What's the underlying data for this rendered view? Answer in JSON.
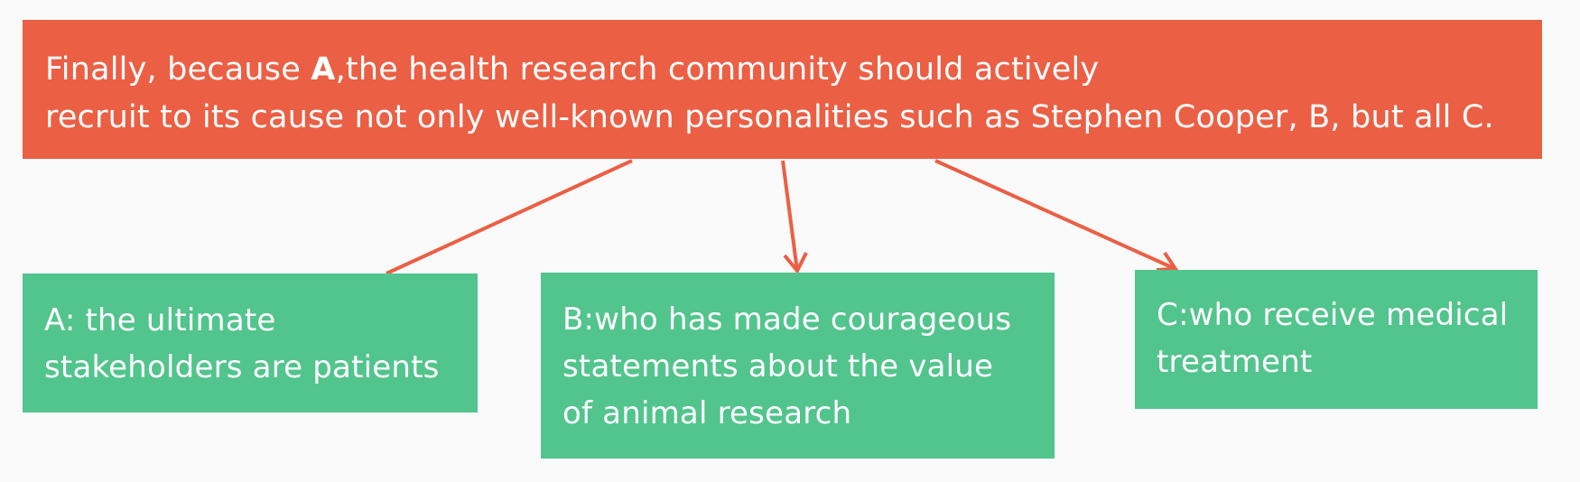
{
  "main_box": {
    "line1_before": "Finally, because ",
    "line1_bold": "A",
    "line1_after": ",the health research community should actively",
    "line2": "recruit to its cause not only well-known personalities such as Stephen Cooper, B, but all C."
  },
  "box_a": {
    "line1": "A: the ultimate",
    "line2": "stakeholders are patients"
  },
  "box_b": {
    "line1": "B:who has made courageous",
    "line2": "statements about the value",
    "line3": "of animal research"
  },
  "box_c": {
    "line1": "C:who receive medical",
    "line2": "treatment"
  },
  "colors": {
    "main_box": "#eb5f44",
    "sub_box": "#52c48d",
    "connector": "#eb5f44",
    "background": "#fafafa",
    "text": "#ffffff"
  }
}
